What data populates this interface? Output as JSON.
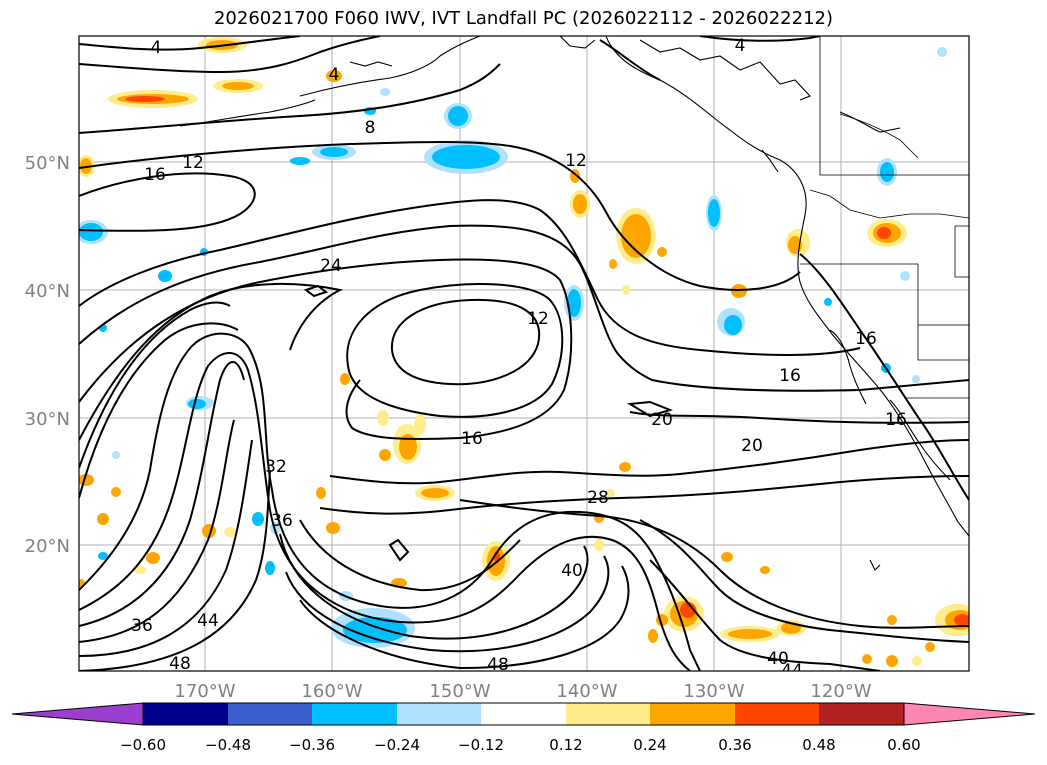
{
  "title": "2026021700 F060 IWV, IVT Landfall PC (2026022112 - 2026022212)",
  "map": {
    "lat_ticks": [
      "50°N",
      "40°N",
      "30°N",
      "20°N"
    ],
    "lon_ticks": [
      "170°W",
      "160°W",
      "150°W",
      "140°W",
      "130°W",
      "120°W"
    ],
    "contour_labels": [
      "4",
      "4",
      "4",
      "8",
      "12",
      "16",
      "12",
      "24",
      "12",
      "16",
      "16",
      "20",
      "20",
      "16",
      "32",
      "36",
      "28",
      "40",
      "36",
      "44",
      "48",
      "48",
      "40",
      "44",
      "16"
    ]
  },
  "colorbar": {
    "tick_labels": [
      "−0.60",
      "−0.48",
      "−0.36",
      "−0.24",
      "−0.12",
      "0.12",
      "0.24",
      "0.36",
      "0.48",
      "0.60"
    ],
    "colors": [
      "#9b3fd1",
      "#00008b",
      "#3a5fcd",
      "#00bfff",
      "#b0e2ff",
      "#ffffff",
      "#ffec8b",
      "#ffa500",
      "#ff4500",
      "#b22222",
      "#ff86b4"
    ]
  }
}
